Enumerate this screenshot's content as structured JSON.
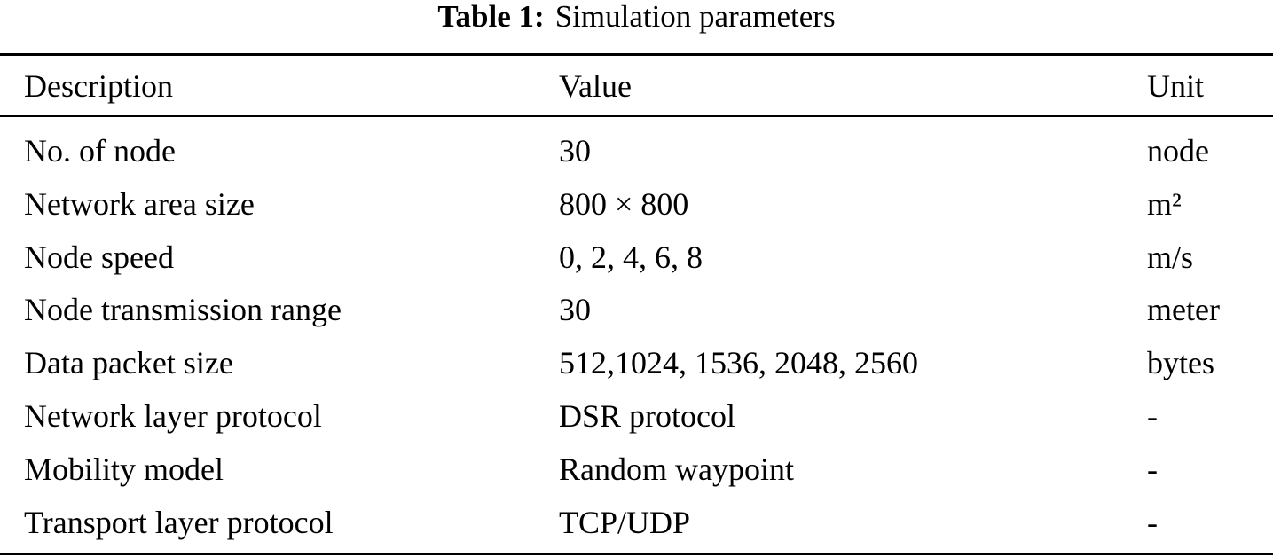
{
  "caption": {
    "label": "Table 1:",
    "title": "Simulation parameters"
  },
  "table": {
    "header": [
      "Description",
      "Value",
      "Unit"
    ],
    "rows": [
      [
        "No. of node",
        "30",
        "node"
      ],
      [
        "Network area size",
        "800 × 800",
        "m²"
      ],
      [
        "Node speed",
        "0, 2, 4, 6, 8",
        "m/s"
      ],
      [
        "Node transmission range",
        "30",
        "meter"
      ],
      [
        "Data packet size",
        "512,1024, 1536, 2048, 2560",
        "bytes"
      ],
      [
        "Network layer protocol",
        "DSR protocol",
        "-"
      ],
      [
        "Mobility model",
        "Random waypoint",
        "-"
      ],
      [
        "Transport layer protocol",
        "TCP/UDP",
        "-"
      ]
    ]
  }
}
